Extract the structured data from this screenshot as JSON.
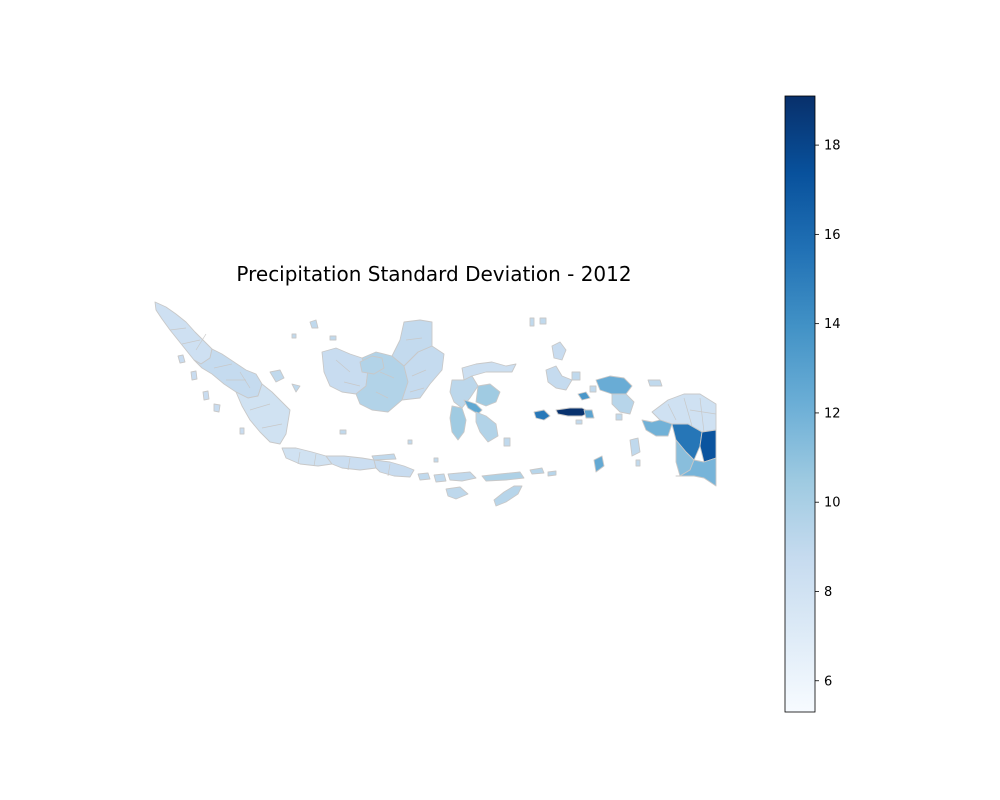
{
  "chart_data": {
    "type": "choropleth",
    "title": "Precipitation Standard Deviation - 2012",
    "colormap": "Blues",
    "border_color": "#c8c8c8",
    "colorbar": {
      "vmin": 5.3,
      "vmax": 19.1,
      "ticks": [
        6,
        8,
        10,
        12,
        14,
        16,
        18
      ]
    },
    "regions": [
      {
        "name": "sumatra-north",
        "value": 8.2
      },
      {
        "name": "sumatra-central",
        "value": 8.8
      },
      {
        "name": "sumatra-south",
        "value": 8.0
      },
      {
        "name": "sumatra-islands",
        "value": 8.6
      },
      {
        "name": "java-west",
        "value": 8.0
      },
      {
        "name": "java-central",
        "value": 8.4
      },
      {
        "name": "java-east",
        "value": 8.6
      },
      {
        "name": "bali",
        "value": 9.0
      },
      {
        "name": "kalimantan-west",
        "value": 8.6
      },
      {
        "name": "kalimantan-central",
        "value": 9.6
      },
      {
        "name": "kalimantan-east",
        "value": 8.8
      },
      {
        "name": "kalimantan-north",
        "value": 8.9
      },
      {
        "name": "sulawesi-north",
        "value": 8.3
      },
      {
        "name": "sulawesi-central",
        "value": 9.2
      },
      {
        "name": "sulawesi-south",
        "value": 10.4
      },
      {
        "name": "sulawesi-southeast",
        "value": 9.6
      },
      {
        "name": "sulawesi-strip",
        "value": 12.6
      },
      {
        "name": "nusa-tenggara-barat",
        "value": 9.0
      },
      {
        "name": "nusa-tenggara-timur",
        "value": 9.4
      },
      {
        "name": "flores",
        "value": 9.8
      },
      {
        "name": "sumba",
        "value": 9.1
      },
      {
        "name": "timor",
        "value": 9.4
      },
      {
        "name": "maluku-north",
        "value": 8.6
      },
      {
        "name": "halmahera",
        "value": 8.8
      },
      {
        "name": "buru",
        "value": 15.3
      },
      {
        "name": "seram",
        "value": 19.0
      },
      {
        "name": "seram-east",
        "value": 12.8
      },
      {
        "name": "seram-west",
        "value": 13.6
      },
      {
        "name": "bird-head-north",
        "value": 12.3
      },
      {
        "name": "bird-head-south",
        "value": 9.4
      },
      {
        "name": "papua-north",
        "value": 8.1
      },
      {
        "name": "papua-highlands",
        "value": 15.4
      },
      {
        "name": "papua-southeast",
        "value": 17.2
      },
      {
        "name": "papua-south",
        "value": 11.8
      },
      {
        "name": "papua-southwest",
        "value": 11.2
      },
      {
        "name": "papua-west-coast",
        "value": 12.0
      },
      {
        "name": "tanimbar",
        "value": 12.5
      },
      {
        "name": "small-islands",
        "value": 9.0
      }
    ]
  }
}
